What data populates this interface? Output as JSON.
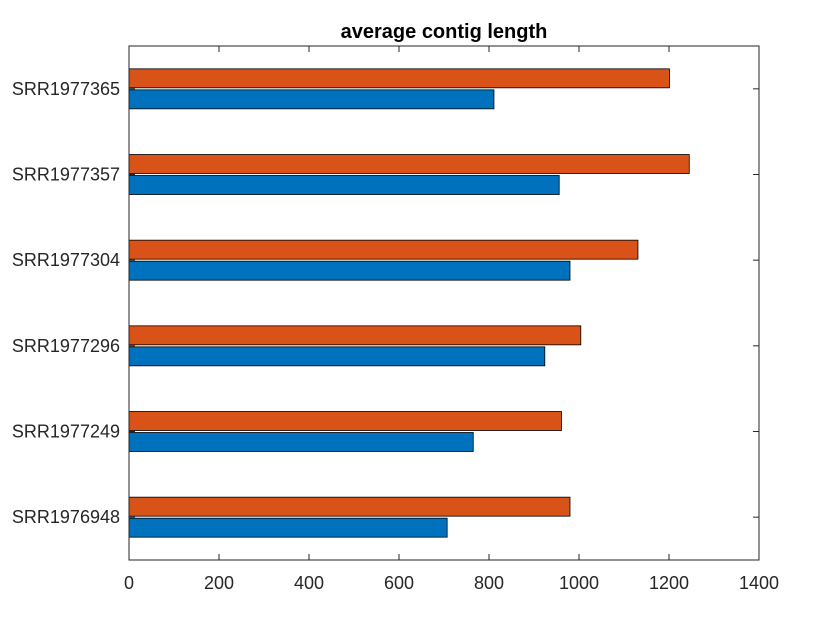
{
  "chart_data": {
    "type": "bar",
    "orientation": "horizontal",
    "title": "average contig length",
    "xlabel": "",
    "ylabel": "",
    "categories": [
      "SRR1976948",
      "SRR1977249",
      "SRR1977296",
      "SRR1977304",
      "SRR1977357",
      "SRR1977365"
    ],
    "xlim": [
      0,
      1400
    ],
    "xticks": [
      0,
      200,
      400,
      600,
      800,
      1000,
      1200,
      1400
    ],
    "grid": false,
    "legend": "none",
    "series": [
      {
        "color": "#0072BD",
        "values": [
          707,
          765,
          924,
          980,
          956,
          811
        ]
      },
      {
        "color": "#D95319",
        "values": [
          980,
          961,
          1004,
          1131,
          1245,
          1201
        ]
      }
    ]
  }
}
